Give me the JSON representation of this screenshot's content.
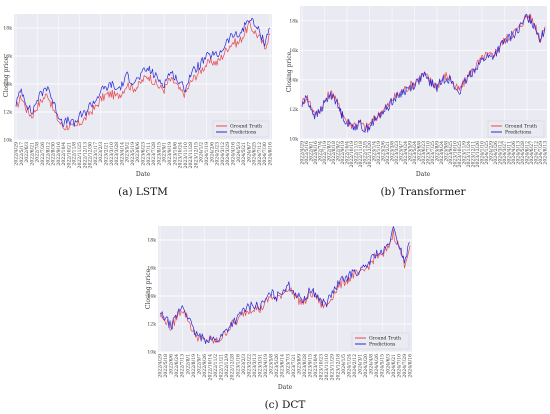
{
  "chart_data": [
    {
      "type": "line",
      "caption": "(a) LSTM",
      "xlabel": "Date",
      "ylabel": "Closing price",
      "ylim": [
        10000,
        19000
      ],
      "yticks": [
        "10k",
        "12k",
        "14k",
        "16k",
        "18k"
      ],
      "legend": [
        "Ground Truth",
        "Predictions"
      ],
      "legend_position": "bottom-right",
      "grid": true,
      "x_dates": [
        "2022/4/29",
        "2022/5/17",
        "2022/6/3",
        "2022/6/21",
        "2022/7/8",
        "2022/7/26",
        "2022/8/12",
        "2022/8/30",
        "2022/9/16",
        "2022/10/4",
        "2022/10/21",
        "2022/11/8",
        "2022/11/25",
        "2022/12/13",
        "2022/12/30",
        "2023/1/17",
        "2023/2/3",
        "2023/2/21",
        "2023/3/10",
        "2023/3/28",
        "2023/4/14",
        "2023/5/2",
        "2023/5/19",
        "2023/6/6",
        "2023/6/23",
        "2023/7/11",
        "2023/7/28",
        "2023/8/15",
        "2023/9/1",
        "2023/9/19",
        "2023/10/6",
        "2023/10/24",
        "2023/11/10",
        "2023/11/28",
        "2023/12/15",
        "2024/1/2",
        "2024/1/19",
        "2024/2/6",
        "2024/2/23",
        "2024/3/12",
        "2024/3/29",
        "2024/4/16",
        "2024/5/3",
        "2024/5/21",
        "2024/6/7",
        "2024/6/25",
        "2024/7/12",
        "2024/7/30",
        "2024/8/16"
      ],
      "series": [
        {
          "name": "Ground Truth",
          "color": "#e8494f",
          "values": [
            12300,
            13100,
            12200,
            11700,
            12400,
            12900,
            13300,
            12200,
            11400,
            10900,
            11000,
            10800,
            11200,
            11500,
            12000,
            12300,
            12900,
            13200,
            13300,
            13100,
            13400,
            14000,
            13700,
            13800,
            14300,
            14600,
            14200,
            13800,
            13600,
            14300,
            14100,
            13500,
            13300,
            14100,
            14600,
            15000,
            15400,
            15600,
            15500,
            16000,
            16600,
            17000,
            16900,
            17500,
            18200,
            17800,
            17300,
            16600,
            17600
          ]
        },
        {
          "name": "Predictions",
          "color": "#2a2ad8",
          "values": [
            12600,
            13600,
            12600,
            11900,
            12900,
            13400,
            13900,
            12700,
            11800,
            11200,
            11400,
            11100,
            11700,
            11900,
            12500,
            12800,
            13500,
            13700,
            14000,
            13600,
            13900,
            14600,
            14200,
            14300,
            14800,
            15100,
            14700,
            14300,
            14000,
            14800,
            14600,
            14000,
            13700,
            14700,
            15100,
            15500,
            15900,
            16100,
            16000,
            16500,
            17100,
            17500,
            17400,
            18000,
            18700,
            18300,
            17700,
            17000,
            18000
          ]
        }
      ]
    },
    {
      "type": "line",
      "caption": "(b) Transformer",
      "xlabel": "Date",
      "ylabel": "Closing price",
      "ylim": [
        10000,
        19000
      ],
      "yticks": [
        "10k",
        "12k",
        "14k",
        "16k",
        "18k"
      ],
      "legend": [
        "Ground Truth",
        "Predictions"
      ],
      "legend_position": "bottom-right",
      "grid": true,
      "x_dates": [
        "2022/4/29",
        "2022/5/16",
        "2022/6/1",
        "2022/6/16",
        "2022/7/4",
        "2022/7/19",
        "2022/8/3",
        "2022/8/18",
        "2022/9/2",
        "2022/9/19",
        "2022/10/4",
        "2022/10/19",
        "2022/11/3",
        "2022/11/18",
        "2022/12/5",
        "2022/12/20",
        "2023/1/4",
        "2023/1/19",
        "2023/2/6",
        "2023/2/21",
        "2023/3/8",
        "2023/3/23",
        "2023/4/7",
        "2023/4/24",
        "2023/5/9",
        "2023/5/24",
        "2023/6/8",
        "2023/6/23",
        "2023/7/10",
        "2023/7/25",
        "2023/8/9",
        "2023/8/24",
        "2023/9/8",
        "2023/9/25",
        "2023/10/10",
        "2023/10/25",
        "2023/11/9",
        "2023/11/24",
        "2023/12/11",
        "2023/12/26",
        "2024/1/10",
        "2024/1/25",
        "2024/2/9",
        "2024/2/26",
        "2024/3/12",
        "2024/3/27",
        "2024/4/11",
        "2024/4/26",
        "2024/5/13",
        "2024/5/28",
        "2024/6/12",
        "2024/6/27",
        "2024/7/12",
        "2024/7/29",
        "2024/8/13"
      ],
      "series": [
        {
          "name": "Ground Truth",
          "color": "#e8494f",
          "values": [
            12400,
            12900,
            12300,
            11600,
            12000,
            12500,
            13000,
            13100,
            12300,
            11700,
            11200,
            11000,
            11000,
            11100,
            10700,
            11000,
            11300,
            11600,
            12000,
            12200,
            12700,
            12900,
            13200,
            13400,
            13600,
            13800,
            14100,
            14400,
            14100,
            13800,
            13600,
            14000,
            14300,
            14100,
            13500,
            13300,
            13800,
            14300,
            14700,
            15100,
            15400,
            15700,
            15600,
            15900,
            16300,
            16700,
            16900,
            17200,
            17400,
            17900,
            18400,
            18100,
            17600,
            16800,
            17600
          ]
        },
        {
          "name": "Predictions",
          "color": "#2a2ad8",
          "values": [
            12300,
            12800,
            12100,
            11500,
            11900,
            12400,
            12900,
            13000,
            12200,
            11600,
            11100,
            10900,
            10900,
            11000,
            10600,
            10900,
            11200,
            11500,
            11900,
            12100,
            12600,
            12800,
            13100,
            13300,
            13500,
            13700,
            14000,
            14300,
            14000,
            13700,
            13500,
            13900,
            14200,
            14000,
            13400,
            13200,
            13700,
            14200,
            14600,
            15000,
            15300,
            15600,
            15500,
            15800,
            16200,
            16600,
            16800,
            17100,
            17300,
            17800,
            18300,
            18000,
            17500,
            16700,
            17500
          ]
        }
      ]
    },
    {
      "type": "line",
      "caption": "(c) DCT",
      "xlabel": "Date",
      "ylabel": "Closing price",
      "ylim": [
        10000,
        19000
      ],
      "yticks": [
        "10k",
        "12k",
        "14k",
        "16k",
        "18k"
      ],
      "legend": [
        "Ground Truth",
        "Predictions"
      ],
      "legend_position": "bottom-right",
      "grid": true,
      "x_dates": [
        "2022/4/29",
        "2022/5/18",
        "2022/6/6",
        "2022/6/24",
        "2022/7/13",
        "2022/8/1",
        "2022/8/19",
        "2022/9/7",
        "2022/9/26",
        "2022/10/14",
        "2022/11/2",
        "2022/11/21",
        "2022/12/9",
        "2022/12/28",
        "2023/1/16",
        "2023/2/3",
        "2023/2/22",
        "2023/3/13",
        "2023/3/31",
        "2023/4/19",
        "2023/5/8",
        "2023/5/26",
        "2023/6/14",
        "2023/7/3",
        "2023/7/21",
        "2023/8/9",
        "2023/8/28",
        "2023/9/15",
        "2023/10/4",
        "2023/10/23",
        "2023/11/10",
        "2023/11/29",
        "2023/12/18",
        "2024/1/5",
        "2024/1/24",
        "2024/2/12",
        "2024/3/1",
        "2024/3/20",
        "2024/4/8",
        "2024/4/26",
        "2024/5/15",
        "2024/6/3",
        "2024/6/21",
        "2024/7/10",
        "2024/7/29",
        "2024/8/16"
      ],
      "series": [
        {
          "name": "Ground Truth",
          "color": "#e8494f",
          "values": [
            12600,
            12300,
            11700,
            12500,
            13100,
            12400,
            11400,
            11000,
            10800,
            10900,
            10700,
            11000,
            11500,
            12000,
            12200,
            12800,
            13000,
            13200,
            13000,
            13500,
            14000,
            13700,
            14200,
            14600,
            14200,
            13700,
            13500,
            14200,
            14000,
            13400,
            13300,
            14000,
            14600,
            15000,
            15200,
            15600,
            15500,
            15900,
            16400,
            16900,
            16800,
            17400,
            18500,
            17500,
            16300,
            17600
          ]
        },
        {
          "name": "Predictions",
          "color": "#2a2ad8",
          "values": [
            12700,
            12400,
            11800,
            12600,
            13300,
            12600,
            11500,
            11100,
            10900,
            11000,
            10800,
            11100,
            11600,
            12100,
            12400,
            13000,
            13200,
            13400,
            13200,
            13700,
            14200,
            13900,
            14400,
            14800,
            14400,
            13900,
            13700,
            14400,
            14200,
            13600,
            13500,
            14200,
            14800,
            15200,
            15400,
            15800,
            15700,
            16100,
            16600,
            17100,
            17000,
            17600,
            18700,
            17700,
            16500,
            17800
          ]
        }
      ]
    }
  ]
}
